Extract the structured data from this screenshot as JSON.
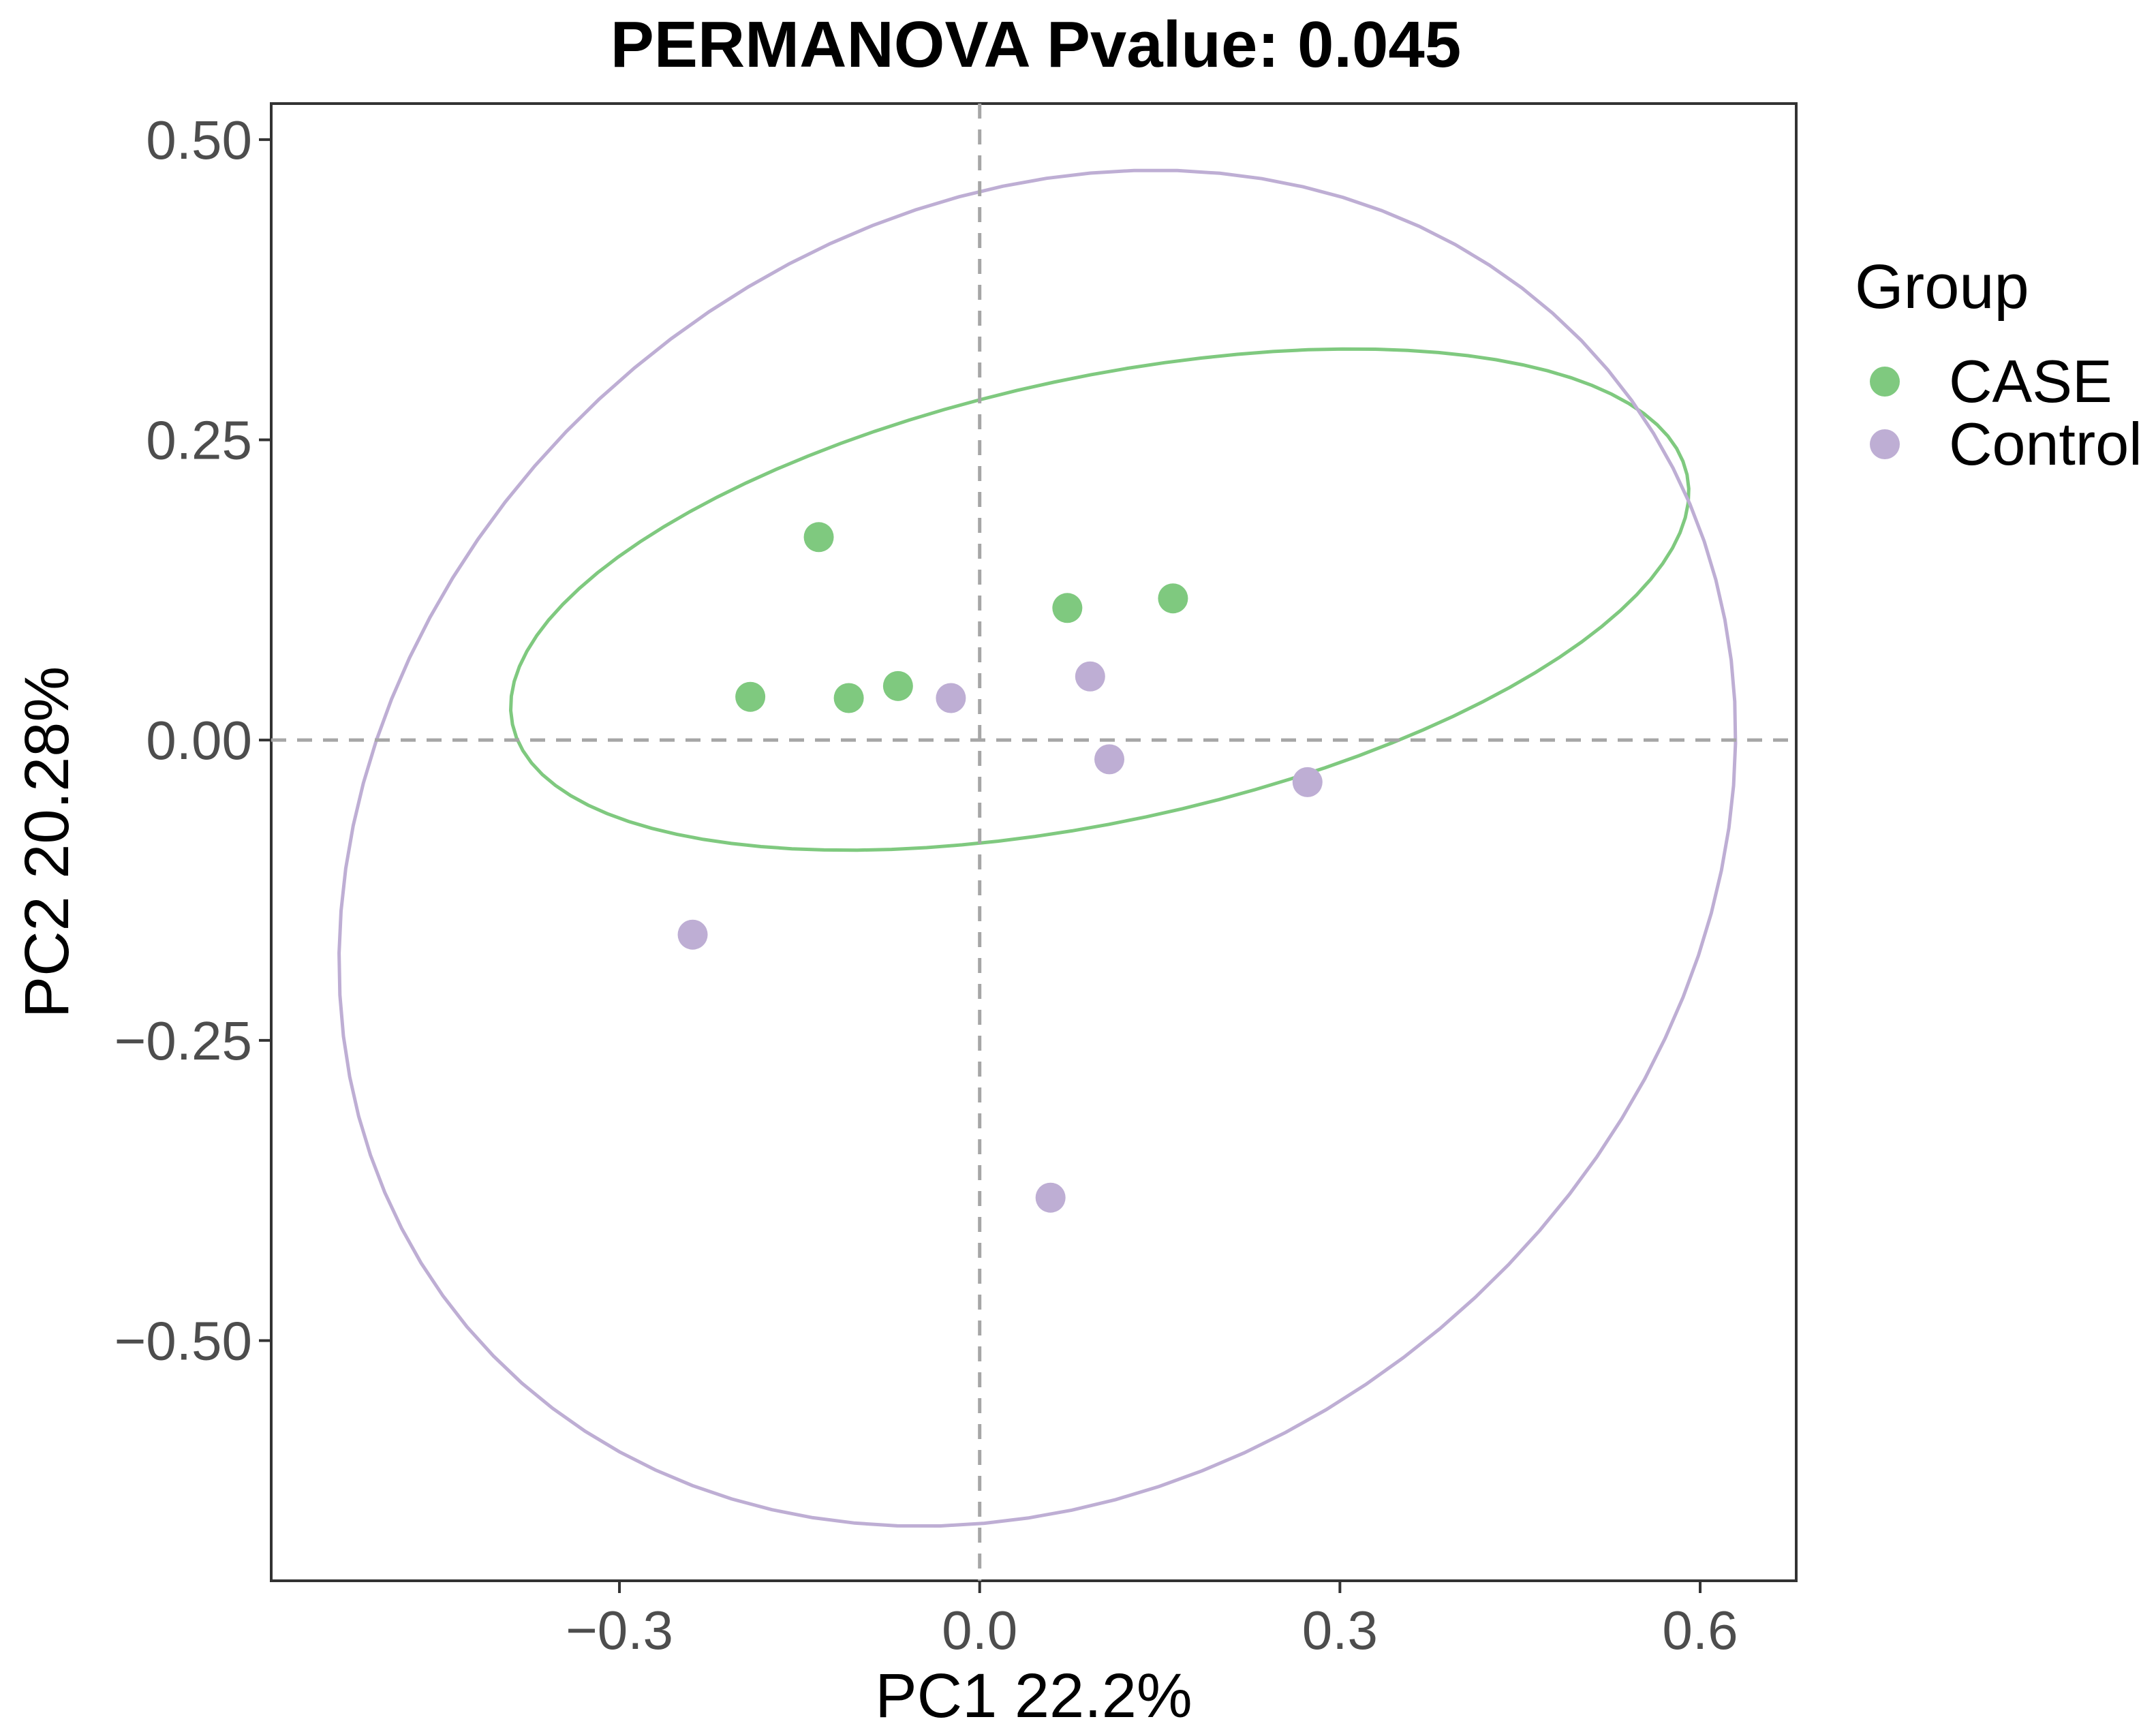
{
  "chart_data": {
    "type": "scatter",
    "title": "PERMANOVA Pvalue: 0.045",
    "xlabel": "PC1 22.2%",
    "ylabel": "PC2 20.28%",
    "xlim": [
      -0.59,
      0.68
    ],
    "ylim": [
      -0.7,
      0.53
    ],
    "x_ticks": [
      -0.3,
      0.0,
      0.3,
      0.6
    ],
    "x_tick_labels": [
      "−0.3",
      "0.0",
      "0.3",
      "0.6"
    ],
    "y_ticks": [
      -0.5,
      -0.25,
      0.0,
      0.25,
      0.5
    ],
    "y_tick_labels": [
      "−0.50",
      "−0.25",
      "0.00",
      "0.25",
      "0.50"
    ],
    "grid": false,
    "reference_lines": {
      "x": 0,
      "y": 0,
      "style": "dashed"
    },
    "legend": {
      "title": "Group",
      "position": "right"
    },
    "series": [
      {
        "name": "CASE",
        "color": "#7fc97f",
        "points": [
          [
            -0.134,
            0.169
          ],
          [
            0.073,
            0.11
          ],
          [
            0.161,
            0.118
          ],
          [
            -0.191,
            0.036
          ],
          [
            -0.109,
            0.035
          ],
          [
            -0.068,
            0.045
          ]
        ],
        "ellipse": {
          "cx": 0.1,
          "cy": 0.117,
          "rx": 0.5,
          "ry": 0.185,
          "angle": 12
        }
      },
      {
        "name": "Control",
        "color": "#beaed4",
        "points": [
          [
            -0.024,
            0.035
          ],
          [
            0.092,
            0.053
          ],
          [
            0.108,
            -0.016
          ],
          [
            0.273,
            -0.035
          ],
          [
            -0.239,
            -0.162
          ],
          [
            0.059,
            -0.381
          ]
        ],
        "ellipse": {
          "cx": 0.048,
          "cy": -0.09,
          "rx": 0.62,
          "ry": 0.522,
          "angle": 40
        }
      }
    ]
  }
}
